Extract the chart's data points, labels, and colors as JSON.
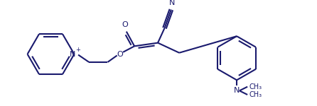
{
  "line_color": "#1a1a6e",
  "bg_color": "#ffffff",
  "line_width": 1.5,
  "figsize": [
    4.46,
    1.5
  ],
  "dpi": 100,
  "xlim": [
    0,
    446
  ],
  "ylim": [
    0,
    150
  ]
}
